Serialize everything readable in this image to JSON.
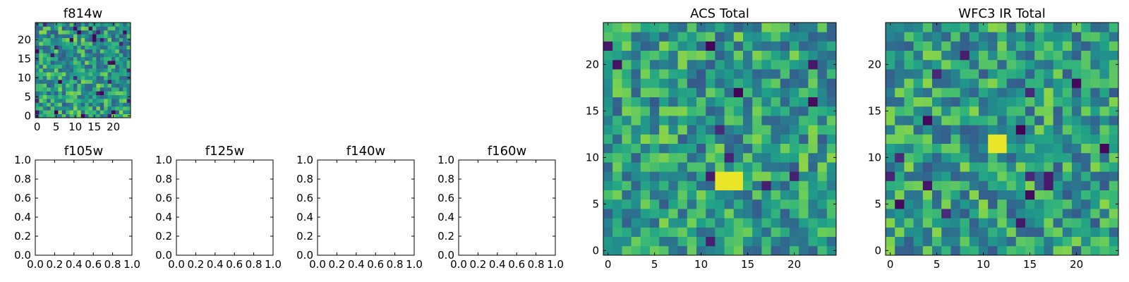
{
  "chart_data": [
    {
      "type": "heatmap",
      "title": "f814w",
      "rows": 25,
      "cols": 25,
      "seed": 7,
      "dark_fraction": 0.05,
      "xlim": [
        -0.5,
        24.5
      ],
      "ylim": [
        -0.5,
        24.5
      ],
      "xticks": [
        0,
        5,
        10,
        15,
        20
      ],
      "xtick_labels": [
        "0",
        "5",
        "10",
        "15",
        "20"
      ],
      "yticks": [
        0,
        5,
        10,
        15,
        20
      ],
      "ytick_labels": [
        "0",
        "5",
        "10",
        "15",
        "20"
      ],
      "colormap": "viridis"
    },
    {
      "type": "empty",
      "title": "f105w",
      "xlim": [
        0,
        1
      ],
      "ylim": [
        0,
        1
      ],
      "xticks": [
        0,
        0.2,
        0.4,
        0.6,
        0.8,
        1.0
      ],
      "xtick_labels": [
        "0.0",
        "0.2",
        "0.4",
        "0.6",
        "0.8",
        "1.0"
      ],
      "yticks": [
        0,
        0.2,
        0.4,
        0.6,
        0.8,
        1.0
      ],
      "ytick_labels": [
        "0.0",
        "0.2",
        "0.4",
        "0.6",
        "0.8",
        "1.0"
      ]
    },
    {
      "type": "empty",
      "title": "f125w",
      "xlim": [
        0,
        1
      ],
      "ylim": [
        0,
        1
      ],
      "xticks": [
        0,
        0.2,
        0.4,
        0.6,
        0.8,
        1.0
      ],
      "xtick_labels": [
        "0.0",
        "0.2",
        "0.4",
        "0.6",
        "0.8",
        "1.0"
      ],
      "yticks": [
        0,
        0.2,
        0.4,
        0.6,
        0.8,
        1.0
      ],
      "ytick_labels": [
        "0.0",
        "0.2",
        "0.4",
        "0.6",
        "0.8",
        "1.0"
      ]
    },
    {
      "type": "empty",
      "title": "f140w",
      "xlim": [
        0,
        1
      ],
      "ylim": [
        0,
        1
      ],
      "xticks": [
        0,
        0.2,
        0.4,
        0.6,
        0.8,
        1.0
      ],
      "xtick_labels": [
        "0.0",
        "0.2",
        "0.4",
        "0.6",
        "0.8",
        "1.0"
      ],
      "yticks": [
        0,
        0.2,
        0.4,
        0.6,
        0.8,
        1.0
      ],
      "ytick_labels": [
        "0.0",
        "0.2",
        "0.4",
        "0.6",
        "0.8",
        "1.0"
      ]
    },
    {
      "type": "empty",
      "title": "f160w",
      "xlim": [
        0,
        1
      ],
      "ylim": [
        0,
        1
      ],
      "xticks": [
        0,
        0.2,
        0.4,
        0.6,
        0.8,
        1.0
      ],
      "xtick_labels": [
        "0.0",
        "0.2",
        "0.4",
        "0.6",
        "0.8",
        "1.0"
      ],
      "yticks": [
        0,
        0.2,
        0.4,
        0.6,
        0.8,
        1.0
      ],
      "ytick_labels": [
        "0.0",
        "0.2",
        "0.4",
        "0.6",
        "0.8",
        "1.0"
      ]
    },
    {
      "type": "heatmap",
      "title": "ACS Total",
      "rows": 25,
      "cols": 25,
      "seed": 21,
      "dark_fraction": 0.025,
      "bright_patch": {
        "x": [
          12,
          14
        ],
        "y": [
          7,
          8
        ]
      },
      "xlim": [
        -0.5,
        24.5
      ],
      "ylim": [
        -0.5,
        24.5
      ],
      "xticks": [
        0,
        5,
        10,
        15,
        20
      ],
      "xtick_labels": [
        "0",
        "5",
        "10",
        "15",
        "20"
      ],
      "yticks": [
        0,
        5,
        10,
        15,
        20
      ],
      "ytick_labels": [
        "0",
        "5",
        "10",
        "15",
        "20"
      ],
      "colormap": "viridis"
    },
    {
      "type": "heatmap",
      "title": "WFC3 IR Total",
      "rows": 25,
      "cols": 25,
      "seed": 43,
      "dark_fraction": 0.025,
      "bright_patch": {
        "x": [
          11,
          12
        ],
        "y": [
          11,
          12
        ]
      },
      "xlim": [
        -0.5,
        24.5
      ],
      "ylim": [
        -0.5,
        24.5
      ],
      "xticks": [
        0,
        5,
        10,
        15,
        20
      ],
      "xtick_labels": [
        "0",
        "5",
        "10",
        "15",
        "20"
      ],
      "yticks": [
        0,
        5,
        10,
        15,
        20
      ],
      "ytick_labels": [
        "0",
        "5",
        "10",
        "15",
        "20"
      ],
      "colormap": "viridis"
    }
  ]
}
